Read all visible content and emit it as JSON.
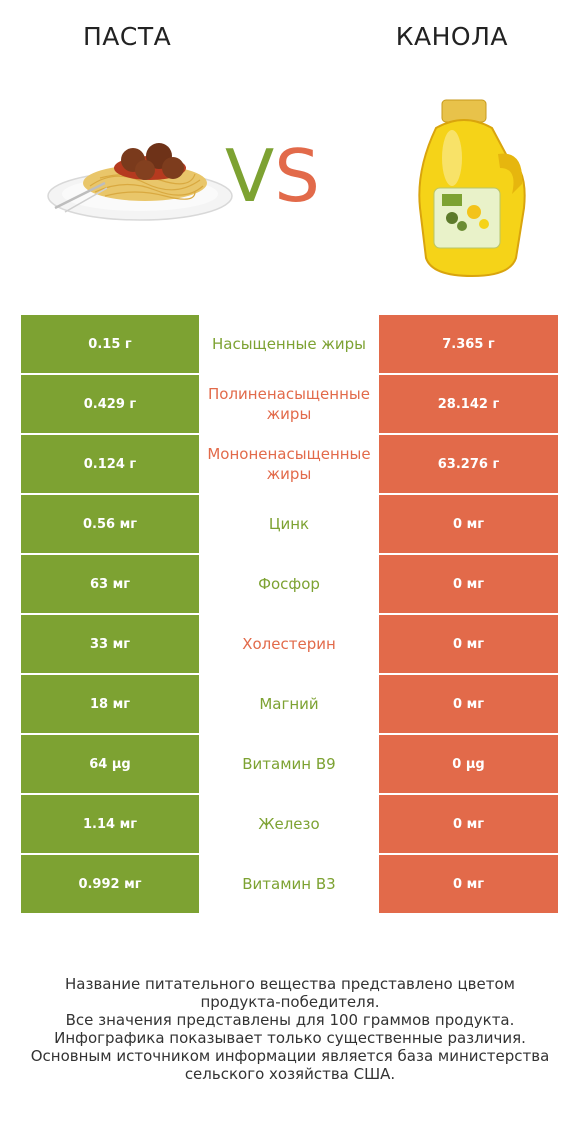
{
  "header": {
    "left_title": "ПАСТА",
    "right_title": "КАНОЛА",
    "vs_v": "V",
    "vs_s": "S"
  },
  "colors": {
    "green": "#7da232",
    "red": "#e26a4a"
  },
  "rows": [
    {
      "left": "0.15 г",
      "name": "Насыщенные жиры",
      "right": "7.365 г",
      "winner": "green"
    },
    {
      "left": "0.429 г",
      "name": "Полиненасыщенные жиры",
      "right": "28.142 г",
      "winner": "red"
    },
    {
      "left": "0.124 г",
      "name": "Мононенасыщенные жиры",
      "right": "63.276 г",
      "winner": "red"
    },
    {
      "left": "0.56 мг",
      "name": "Цинк",
      "right": "0 мг",
      "winner": "green"
    },
    {
      "left": "63 мг",
      "name": "Фосфор",
      "right": "0 мг",
      "winner": "green"
    },
    {
      "left": "33 мг",
      "name": "Холестерин",
      "right": "0 мг",
      "winner": "red"
    },
    {
      "left": "18 мг",
      "name": "Магний",
      "right": "0 мг",
      "winner": "green"
    },
    {
      "left": "64 µg",
      "name": "Витамин B9",
      "right": "0 µg",
      "winner": "green"
    },
    {
      "left": "1.14 мг",
      "name": "Железо",
      "right": "0 мг",
      "winner": "green"
    },
    {
      "left": "0.992 мг",
      "name": "Витамин B3",
      "right": "0 мг",
      "winner": "green"
    }
  ],
  "footer": {
    "line1": "Название питательного вещества представлено цветом",
    "line2": "продукта-победителя.",
    "line3": "Все значения представлены для 100 граммов продукта.",
    "line4": "Инфографика показывает только существенные различия.",
    "line5": "Основным источником информации является база министерства",
    "line6": "сельского хозяйства США."
  }
}
